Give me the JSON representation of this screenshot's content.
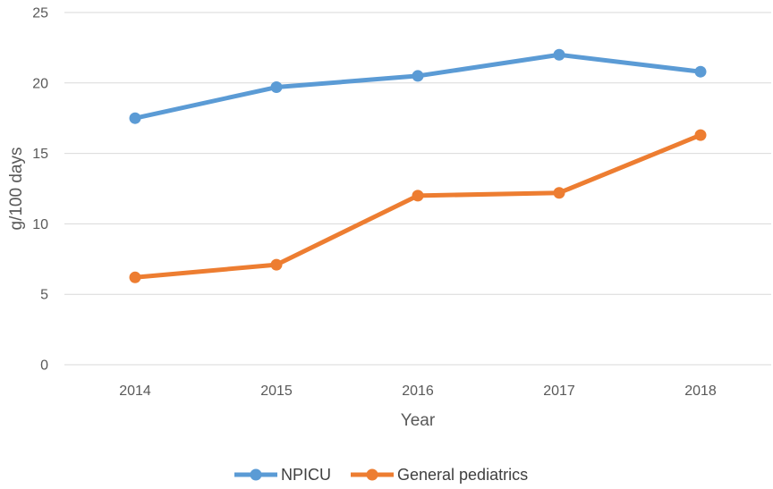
{
  "chart_data": {
    "type": "line",
    "title": "",
    "xlabel": "Year",
    "ylabel": "g/100 days",
    "categories": [
      "2014",
      "2015",
      "2016",
      "2017",
      "2018"
    ],
    "ylim": [
      0,
      25
    ],
    "yticks": [
      0,
      5,
      10,
      15,
      20,
      25
    ],
    "grid": true,
    "legend_position": "bottom",
    "series": [
      {
        "name": "NPICU",
        "color": "#5b9bd5",
        "values": [
          17.5,
          19.7,
          20.5,
          22.0,
          20.8
        ]
      },
      {
        "name": "General pediatrics",
        "color": "#ed7d31",
        "values": [
          6.2,
          7.1,
          12.0,
          12.2,
          16.3
        ]
      }
    ]
  }
}
